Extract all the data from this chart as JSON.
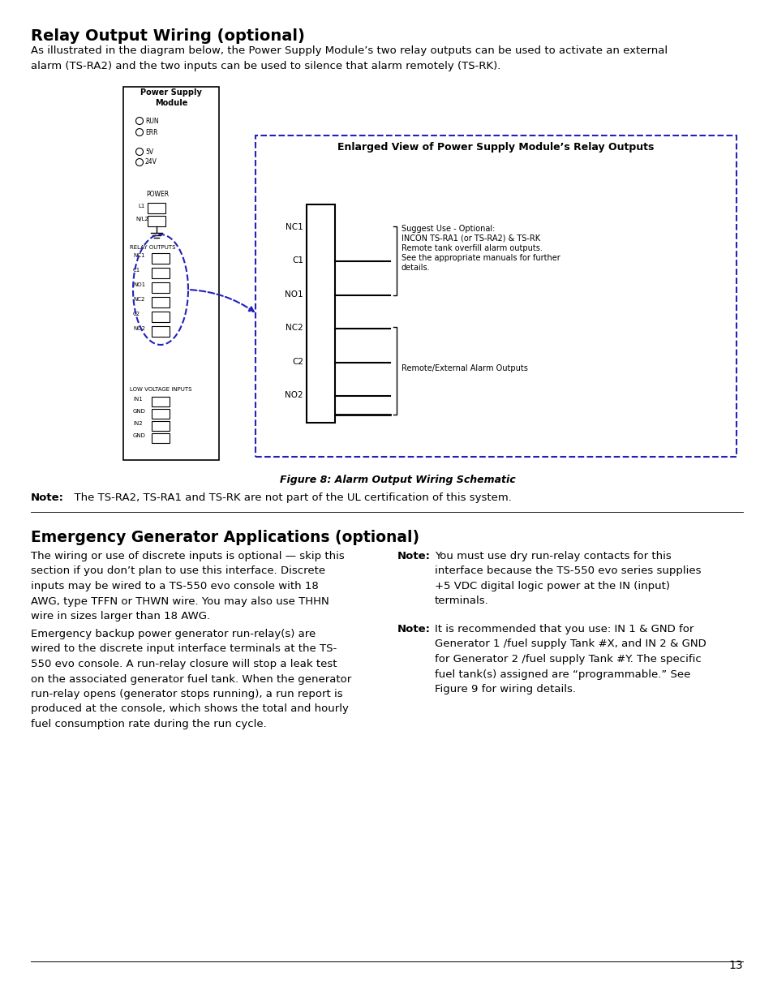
{
  "title": "Relay Output Wiring (optional)",
  "subtitle": "As illustrated in the diagram below, the Power Supply Module’s two relay outputs can be used to activate an external\nalarm (TS-RA2) and the two inputs can be used to silence that alarm remotely (TS-RK).",
  "figure_caption": "Figure 8: Alarm Output Wiring Schematic",
  "note1_bold": "Note:",
  "note1_rest": "  The TS-RA2, TS-RA1 and TS-RK are not part of the UL certification of this system.",
  "section2_title": "Emergency Generator Applications (optional)",
  "section2_col1_p1": "The wiring or use of discrete inputs is optional — skip this\nsection if you don’t plan to use this interface. Discrete\ninputs may be wired to a TS-550 evo console with 18\nAWG, type TFFN or THWN wire. You may also use THHN\nwire in sizes larger than 18 AWG.",
  "section2_col1_p2": "Emergency backup power generator run-relay(s) are\nwired to the discrete input interface terminals at the TS-\n550 evo console. A run-relay closure will stop a leak test\non the associated generator fuel tank. When the generator\nrun-relay opens (generator stops running), a run report is\nproduced at the console, which shows the total and hourly\nfuel consumption rate during the run cycle.",
  "note2_text": "You must use dry run-relay contacts for this\ninterface because the TS-550 evo series supplies\n+5 VDC digital logic power at the IN (input)\nterminals.",
  "note3_text": "It is recommended that you use: IN 1 & GND for\nGenerator 1 /fuel supply Tank #X, and IN 2 & GND\nfor Generator 2 /fuel supply Tank #Y. The specific\nfuel tank(s) assigned are “programmable.” See\nFigure 9 for wiring details.",
  "page_number": "13",
  "bg_color": "#ffffff",
  "text_color": "#000000",
  "diagram_blue": "#2222bb"
}
